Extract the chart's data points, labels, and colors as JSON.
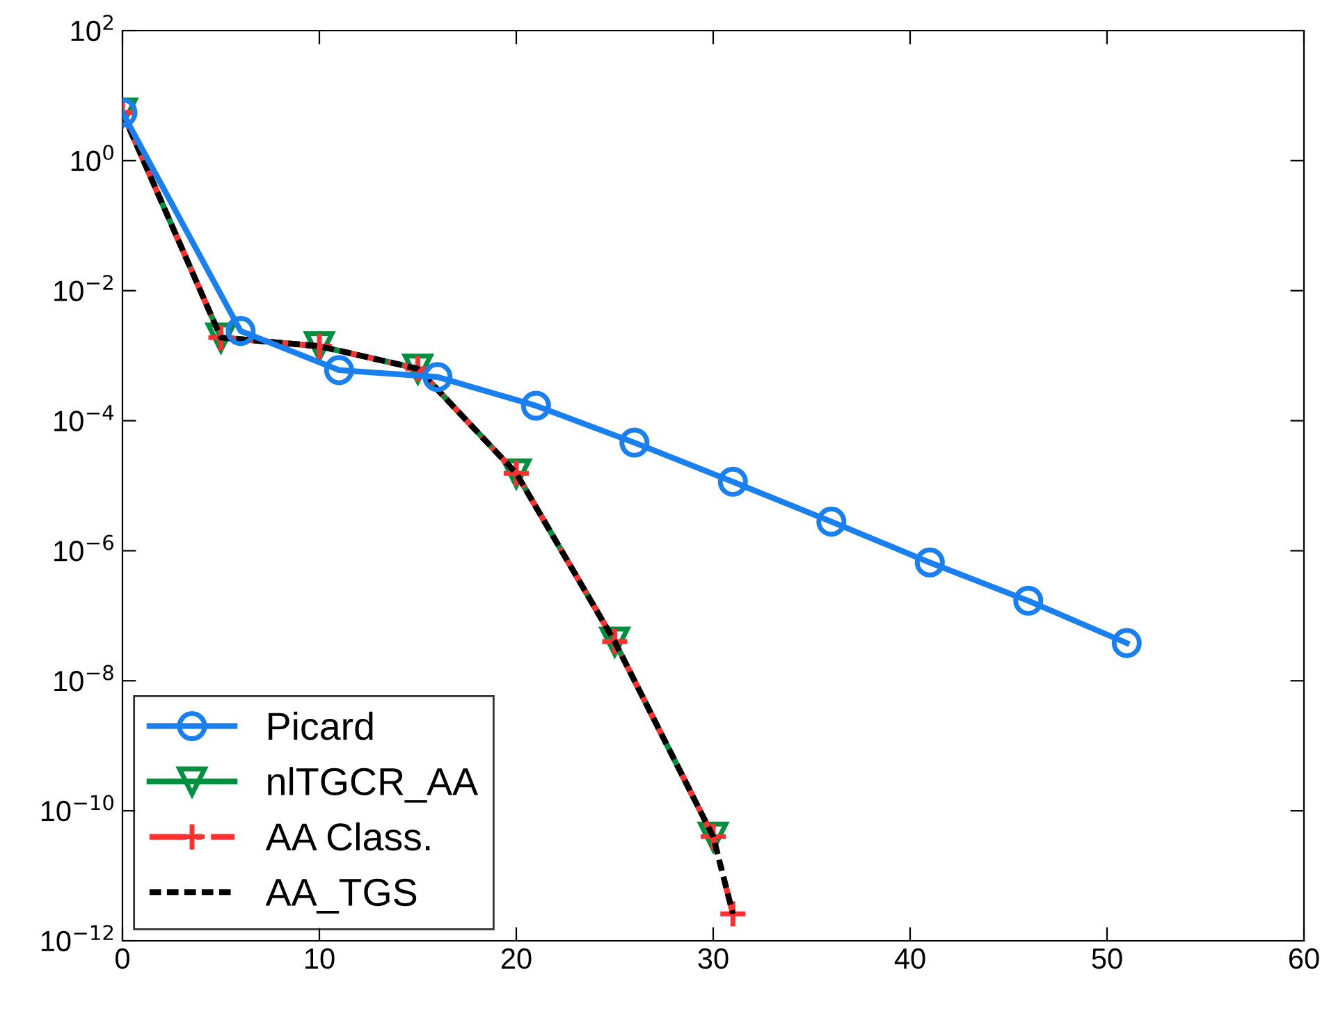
{
  "chart_data": {
    "type": "line",
    "log": "y",
    "grid": false,
    "legend": "bottom left",
    "xlim": [
      0,
      60
    ],
    "xticks": [
      0,
      10,
      20,
      30,
      40,
      50,
      60
    ],
    "ylim": [
      1e-12,
      100
    ],
    "yticks": [
      {
        "value": 1e-12,
        "label": "10$^{−12}$"
      },
      {
        "value": 1e-10,
        "label": "10$^{−10}$"
      },
      {
        "value": 1e-08,
        "label": "10$^{−8}$"
      },
      {
        "value": 1e-06,
        "label": "10$^{−6}$"
      },
      {
        "value": 0.0001,
        "label": "10$^{−4}$"
      },
      {
        "value": 0.01,
        "label": "10$^{−2}$"
      },
      {
        "value": 1,
        "label": "10$^{0}$"
      },
      {
        "value": 100,
        "label": "10$^{2}$"
      }
    ],
    "series": [
      {
        "name": "Picard",
        "color": "#1a80f0",
        "marker": "circle",
        "line_style": "solid",
        "x": [
          0,
          6,
          11,
          16,
          21,
          26,
          31,
          36,
          41,
          46,
          51
        ],
        "values": [
          5.5,
          0.0024,
          0.0006,
          0.00047,
          0.00017,
          4.6e-05,
          1.15e-05,
          2.8e-06,
          6.6e-07,
          1.7e-07,
          3.8e-08
        ]
      },
      {
        "name": "nlTGCR_AA",
        "color": "#009040",
        "marker": "triangle",
        "line_style": "solid",
        "x": [
          0,
          5,
          10,
          15,
          20,
          25,
          30
        ],
        "values": [
          5.5,
          0.0019,
          0.0014,
          0.00063,
          1.55e-05,
          4e-08,
          4e-11
        ]
      },
      {
        "name": "AA Class.",
        "color": "#ff3030",
        "marker": "cross",
        "line_style": "dashdot",
        "x": [
          0,
          5,
          10,
          15,
          20,
          25,
          30,
          31
        ],
        "values": [
          5.5,
          0.0019,
          0.0014,
          0.00063,
          1.55e-05,
          4e-08,
          4e-11,
          2.6e-12
        ]
      },
      {
        "name": "AA_TGS",
        "color": "#000000",
        "marker": "none",
        "line_style": "dashed",
        "x": [
          0,
          5,
          10,
          15,
          20,
          25,
          30,
          31
        ],
        "values": [
          5.5,
          0.0019,
          0.0014,
          0.00063,
          1.55e-05,
          4e-08,
          4e-11,
          2.6e-12
        ]
      }
    ]
  }
}
